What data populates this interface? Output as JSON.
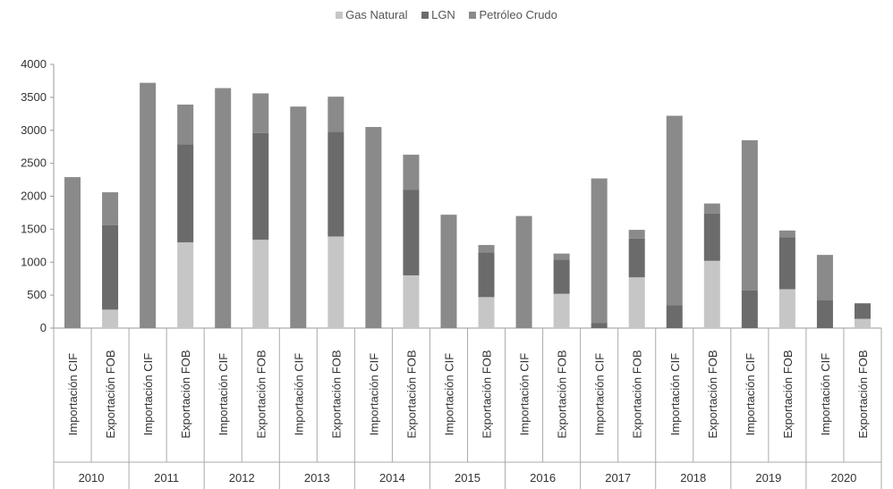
{
  "chart_data": {
    "type": "bar",
    "stacked": true,
    "years": [
      "2010",
      "2011",
      "2012",
      "2013",
      "2014",
      "2015",
      "2016",
      "2017",
      "2018",
      "2019",
      "2020"
    ],
    "sub_categories": [
      "Importación CIF",
      "Exportación FOB"
    ],
    "series": [
      {
        "name": "Gas Natural",
        "color": "#c6c6c6",
        "values": [
          0,
          280,
          0,
          1300,
          0,
          1340,
          0,
          1390,
          0,
          800,
          0,
          470,
          0,
          520,
          0,
          770,
          0,
          1020,
          0,
          590,
          0,
          140
        ]
      },
      {
        "name": "LGN",
        "color": "#6b6b6b",
        "values": [
          0,
          1280,
          0,
          1490,
          0,
          1620,
          0,
          1590,
          0,
          1300,
          0,
          680,
          0,
          520,
          80,
          590,
          350,
          720,
          570,
          790,
          420,
          230
        ]
      },
      {
        "name": "Petróleo Crudo",
        "color": "#8a8a8a",
        "values": [
          2290,
          500,
          3720,
          600,
          3640,
          600,
          3360,
          530,
          3050,
          530,
          1720,
          110,
          1700,
          90,
          2190,
          130,
          2870,
          150,
          2280,
          100,
          690,
          10
        ]
      }
    ],
    "ylim": [
      0,
      4000
    ],
    "yticks": [
      "0",
      "500",
      "1000",
      "1500",
      "2000",
      "2500",
      "3000",
      "3500",
      "4000"
    ],
    "legend_position": "top-center"
  }
}
